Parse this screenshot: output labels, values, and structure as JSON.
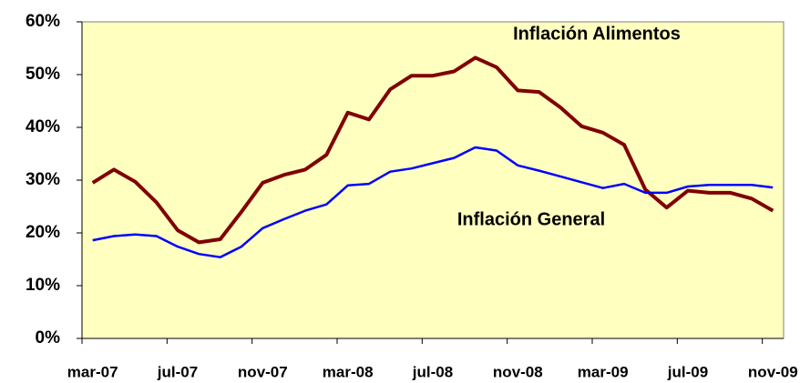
{
  "chart_data": {
    "type": "line",
    "categories": [
      "mar-07",
      null,
      null,
      null,
      "jul-07",
      null,
      null,
      null,
      "nov-07",
      null,
      null,
      null,
      "mar-08",
      null,
      null,
      null,
      "jul-08",
      null,
      null,
      null,
      "nov-08",
      null,
      null,
      null,
      "mar-09",
      null,
      null,
      null,
      "jul-09",
      null,
      null,
      null,
      "nov-09"
    ],
    "series": [
      {
        "name": "Inflación Alimentos",
        "color": "#800000",
        "values": [
          29.5,
          32,
          29.7,
          25.8,
          20.5,
          18.2,
          18.8,
          24,
          29.5,
          31,
          32,
          34.8,
          42.8,
          41.5,
          47.2,
          49.8,
          49.8,
          50.6,
          53.2,
          51.4,
          47,
          46.7,
          43.8,
          40.2,
          39,
          36.7,
          28.2,
          24.8,
          28,
          27.6,
          27.6,
          26.5,
          24.2
        ]
      },
      {
        "name": "Inflación General",
        "color": "#0000ff",
        "values": [
          18.6,
          19.4,
          19.7,
          19.4,
          17.4,
          16,
          15.4,
          17.4,
          20.9,
          22.6,
          24.2,
          25.4,
          29,
          29.3,
          31.6,
          32.2,
          33.2,
          34.2,
          36.2,
          35.6,
          32.8,
          31.8,
          30.7,
          29.6,
          28.5,
          29.3,
          27.6,
          27.6,
          28.8,
          29.1,
          29.1,
          29.1,
          28.6
        ]
      }
    ],
    "ylim": [
      0,
      60
    ],
    "yticks": [
      {
        "value": 0,
        "label": "0%"
      },
      {
        "value": 10,
        "label": "10%"
      },
      {
        "value": 20,
        "label": "20%"
      },
      {
        "value": 30,
        "label": "30%"
      },
      {
        "value": 40,
        "label": "40%"
      },
      {
        "value": 50,
        "label": "50%"
      },
      {
        "value": 60,
        "label": "60%"
      }
    ],
    "background": "#ffffc0"
  }
}
